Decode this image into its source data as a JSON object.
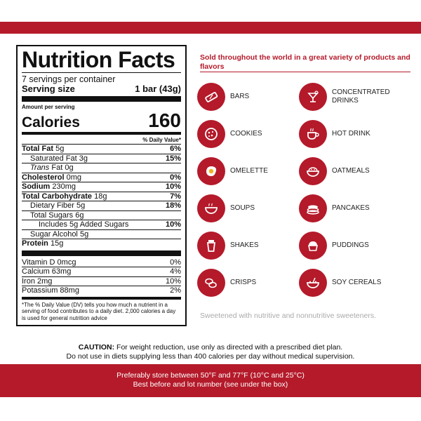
{
  "nutrition": {
    "title": "Nutrition Facts",
    "servings": "7 servings per container",
    "serving_size_label": "Serving size",
    "serving_size_value": "1 bar (43g)",
    "amount_per_serving": "Amount per serving",
    "calories_label": "Calories",
    "calories_value": "160",
    "dv_header": "% Daily Value*",
    "rows": [
      {
        "label": "Total Fat",
        "amount": "5g",
        "dv": "6%"
      },
      {
        "label": "Saturated Fat",
        "amount": "3g",
        "dv": "15%"
      },
      {
        "label": "Trans",
        "amount": "Fat 0g",
        "dv": ""
      },
      {
        "label": "Cholesterol",
        "amount": "0mg",
        "dv": "0%"
      },
      {
        "label": "Sodium",
        "amount": "230mg",
        "dv": "10%"
      },
      {
        "label": "Total Carbohydrate",
        "amount": "18g",
        "dv": "7%"
      },
      {
        "label": "Dietary Fiber",
        "amount": "5g",
        "dv": "18%"
      },
      {
        "label": "Total Sugars",
        "amount": "6g",
        "dv": ""
      },
      {
        "label": "Includes 5g Added Sugars",
        "amount": "",
        "dv": "10%"
      },
      {
        "label": "Sugar Alcohol",
        "amount": "5g",
        "dv": ""
      },
      {
        "label": "Protein",
        "amount": "15g",
        "dv": ""
      }
    ],
    "vitamins": [
      {
        "label": "Vitamin D",
        "amount": "0mcg",
        "dv": "0%"
      },
      {
        "label": "Calcium",
        "amount": "63mg",
        "dv": "4%"
      },
      {
        "label": "Iron",
        "amount": "2mg",
        "dv": "10%"
      },
      {
        "label": "Potassium",
        "amount": "88mg",
        "dv": "2%"
      }
    ],
    "footnote": "*The % Daily Value (DV) tells you how much a nutrient in a serving of food contributes to a daily diet. 2,000 calories a day is used for general nutrition advice"
  },
  "products": {
    "heading": "Sold throughout the world in a great variety of products and flavors",
    "items": [
      {
        "label": "BARS",
        "icon": "bar-icon"
      },
      {
        "label": "CONCENTRATED DRINKS",
        "icon": "cocktail-icon"
      },
      {
        "label": "COOKIES",
        "icon": "cookie-icon"
      },
      {
        "label": "HOT DRINK",
        "icon": "cup-icon"
      },
      {
        "label": "OMELETTE",
        "icon": "egg-icon"
      },
      {
        "label": "OATMEALS",
        "icon": "oatmeal-icon"
      },
      {
        "label": "SOUPS",
        "icon": "soup-icon"
      },
      {
        "label": "PANCAKES",
        "icon": "pancake-icon"
      },
      {
        "label": "SHAKES",
        "icon": "shaker-icon"
      },
      {
        "label": "PUDDINGS",
        "icon": "pudding-icon"
      },
      {
        "label": "CRISPS",
        "icon": "crisps-icon"
      },
      {
        "label": "SOY CEREALS",
        "icon": "cereal-icon"
      }
    ],
    "sweetener_note": "Sweetened with nutritive and nonnutritive sweeteners."
  },
  "caution": {
    "label": "CAUTION:",
    "line1": "For weight reduction, use only as directed with a prescribed diet plan.",
    "line2": "Do not use in diets supplying less than 400 calories per day without medical supervision."
  },
  "storage": {
    "line1": "Preferably store between 50°F and 77°F (10°C and 25°C)",
    "line2": "Best before and lot number (see under the box)"
  },
  "colors": {
    "brand_red": "#b41a2a"
  }
}
